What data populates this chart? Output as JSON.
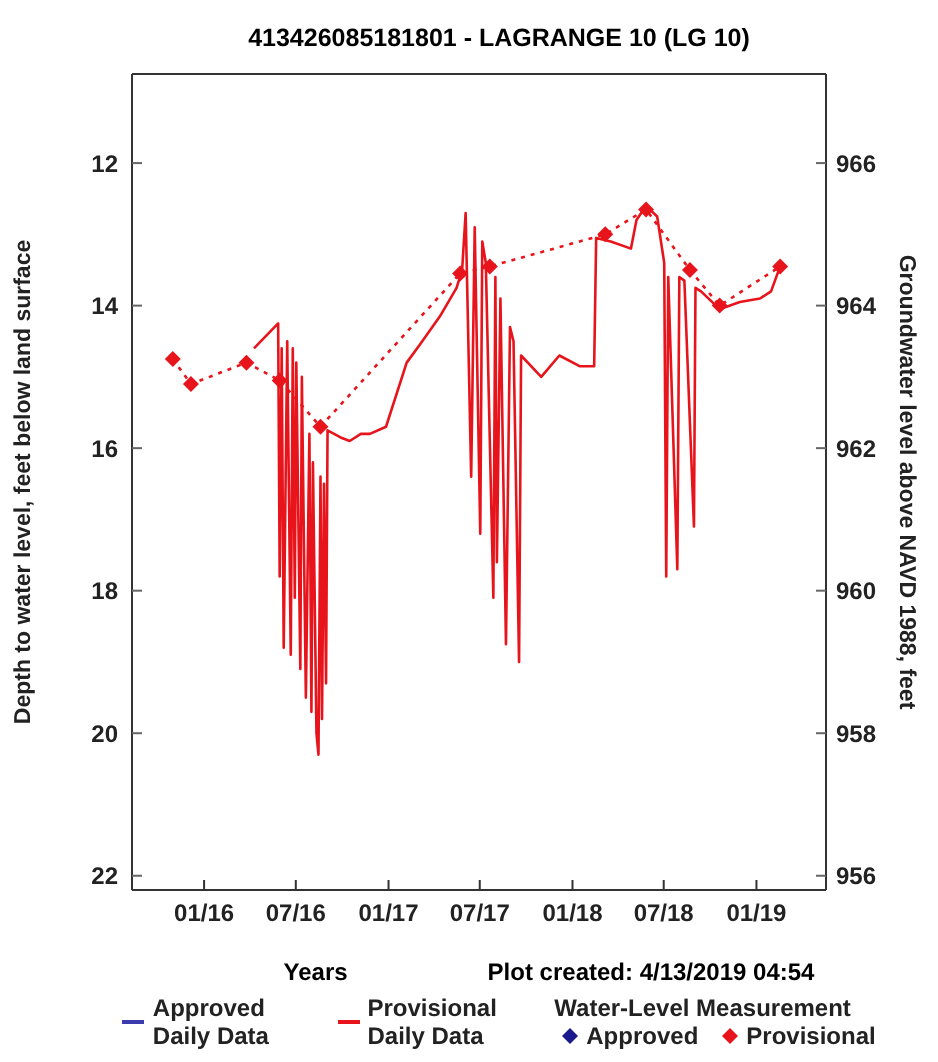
{
  "chart_data": {
    "type": "line",
    "title": "413426085181801 - LAGRANGE 10 (LG 10)",
    "xlabel": "Years",
    "ylabel": "Depth to water level, feet below land surface",
    "y2label": "Groundwater level above NAVD 1988, feet",
    "annotations": [
      "Plot created: 4/13/2019 04:54"
    ],
    "xlim": [
      "2015-08-11",
      "2019-05-19"
    ],
    "xticks": [
      {
        "value": "2016-01-01",
        "label": "01/16"
      },
      {
        "value": "2016-07-01",
        "label": "07/16"
      },
      {
        "value": "2017-01-01",
        "label": "01/17"
      },
      {
        "value": "2017-07-01",
        "label": "07/17"
      },
      {
        "value": "2018-01-01",
        "label": "01/18"
      },
      {
        "value": "2018-07-01",
        "label": "07/18"
      },
      {
        "value": "2019-01-01",
        "label": "01/19"
      }
    ],
    "ylim": [
      22.2,
      10.75
    ],
    "yticks": [
      12,
      14,
      16,
      18,
      20,
      22
    ],
    "y2lim": [
      955.8,
      967.25
    ],
    "y2ticks": [
      956,
      958,
      960,
      962,
      964,
      966
    ],
    "legend": "bottom",
    "legend_title": "Water-Level Measurement",
    "series": [
      {
        "name": "Approved Daily Data",
        "color": "#3b3bb0",
        "marker": "none",
        "line_style": "solid"
      },
      {
        "name": "Provisional Daily Data",
        "color": "#e8141c",
        "marker": "none",
        "line_style": "solid",
        "x": [
          "2016-04-09",
          "2016-05-27",
          "2016-05-30",
          "2016-06-03",
          "2016-06-07",
          "2016-06-14",
          "2016-06-21",
          "2016-06-25",
          "2016-06-29",
          "2016-07-02",
          "2016-07-10",
          "2016-07-13",
          "2016-07-21",
          "2016-07-28",
          "2016-08-01",
          "2016-08-04",
          "2016-08-11",
          "2016-08-15",
          "2016-08-19",
          "2016-08-22",
          "2016-08-26",
          "2016-08-30",
          "2016-09-02",
          "2016-09-28",
          "2016-10-16",
          "2016-11-07",
          "2016-11-25",
          "2016-12-27",
          "2017-02-06",
          "2017-03-04",
          "2017-04-13",
          "2017-05-16",
          "2017-05-27",
          "2017-06-03",
          "2017-06-14",
          "2017-06-21",
          "2017-07-02",
          "2017-07-06",
          "2017-07-13",
          "2017-07-28",
          "2017-08-01",
          "2017-08-04",
          "2017-08-11",
          "2017-08-22",
          "2017-08-30",
          "2017-09-06",
          "2017-09-17",
          "2017-09-21",
          "2017-10-31",
          "2017-12-06",
          "2018-01-15",
          "2018-02-13",
          "2018-02-17",
          "2018-03-18",
          "2018-04-27",
          "2018-05-08",
          "2018-05-27",
          "2018-06-18",
          "2018-07-02",
          "2018-07-06",
          "2018-07-10",
          "2018-07-28",
          "2018-08-01",
          "2018-08-11",
          "2018-08-30",
          "2018-09-02",
          "2018-09-13",
          "2018-10-20",
          "2018-11-29",
          "2019-01-08",
          "2019-01-30",
          "2019-02-17"
        ],
        "values": [
          14.6,
          14.25,
          17.8,
          14.6,
          18.8,
          14.5,
          18.9,
          14.6,
          18.1,
          14.8,
          19.1,
          15.0,
          19.5,
          15.8,
          19.7,
          16.2,
          20.0,
          20.3,
          16.4,
          19.8,
          16.5,
          19.3,
          15.75,
          15.85,
          15.9,
          15.8,
          15.8,
          15.7,
          14.8,
          14.55,
          14.15,
          13.75,
          13.5,
          12.7,
          16.4,
          12.9,
          17.2,
          13.1,
          13.4,
          18.1,
          13.6,
          17.6,
          13.9,
          18.75,
          14.3,
          14.5,
          19.0,
          14.7,
          15.0,
          14.7,
          14.85,
          14.85,
          13.05,
          13.1,
          13.2,
          12.8,
          12.6,
          12.75,
          13.4,
          17.8,
          13.6,
          17.7,
          13.6,
          13.65,
          17.1,
          13.75,
          13.8,
          14.05,
          13.95,
          13.9,
          13.8,
          13.45
        ]
      },
      {
        "name": "Approved",
        "color": "#1a1a8c",
        "marker": "diamond",
        "line_style": "dotted"
      },
      {
        "name": "Provisional",
        "color": "#e8141c",
        "marker": "diamond",
        "line_style": "dotted",
        "x": [
          "2015-10-31",
          "2015-12-06",
          "2016-03-25",
          "2016-05-30",
          "2016-08-19",
          "2017-05-23",
          "2017-07-21",
          "2018-03-07",
          "2018-05-27",
          "2018-08-22",
          "2018-10-20",
          "2019-02-17"
        ],
        "values": [
          14.75,
          15.1,
          14.8,
          15.05,
          15.7,
          13.55,
          13.45,
          13.0,
          12.65,
          13.5,
          14.0,
          13.45
        ]
      }
    ]
  }
}
